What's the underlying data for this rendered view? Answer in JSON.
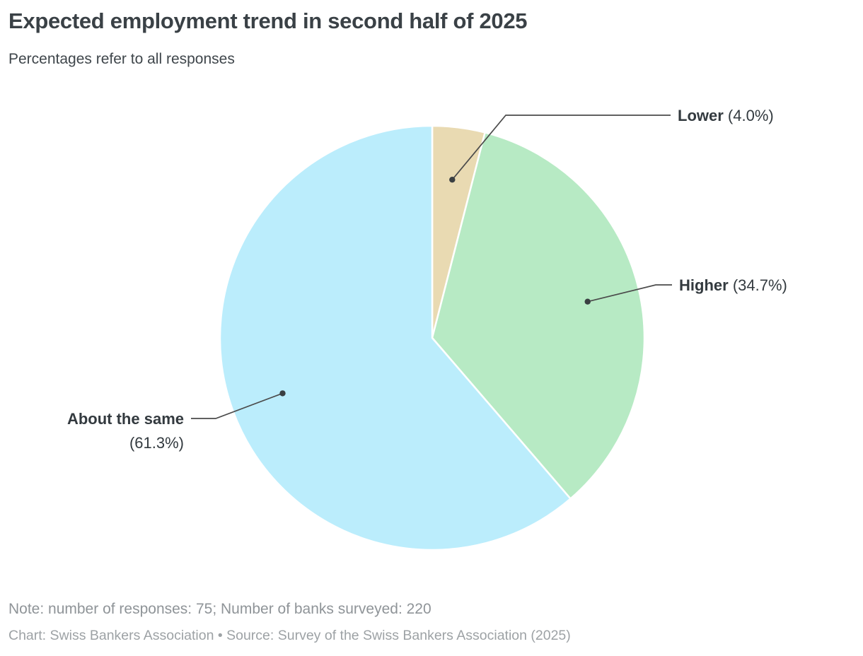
{
  "header": {
    "title": "Expected employment trend in second half of 2025",
    "subtitle": "Percentages refer to all responses"
  },
  "chart_data": {
    "type": "pie",
    "title": "Expected employment trend in second half of 2025",
    "subtitle": "Percentages refer to all responses",
    "unit": "percent of all responses",
    "categories": [
      "Lower",
      "Higher",
      "About the same"
    ],
    "values": [
      4.0,
      34.7,
      61.3
    ],
    "start_angle_deg": 0,
    "direction": "clockwise",
    "legend_position": "external-callout-labels",
    "slices": [
      {
        "id": "lower",
        "label": "Lower",
        "value": 4.0,
        "pct_display": "(4.0%)",
        "color": "#E9DAB2"
      },
      {
        "id": "higher",
        "label": "Higher",
        "value": 34.7,
        "pct_display": "(34.7%)",
        "color": "#B7EAC4"
      },
      {
        "id": "about-the-same",
        "label": "About the same",
        "value": 61.3,
        "pct_display": "(61.3%)",
        "color": "#BBEDFC"
      }
    ],
    "colors": {
      "callout_line": "#4b4b4b",
      "callout_dot": "#3a3f42",
      "slice_gap": "#ffffff"
    }
  },
  "footer": {
    "note": "Note: number of responses: 75; Number of banks surveyed: 220",
    "caption": "Chart: Swiss Bankers Association • Source: Survey of the Swiss Bankers Association (2025)"
  }
}
